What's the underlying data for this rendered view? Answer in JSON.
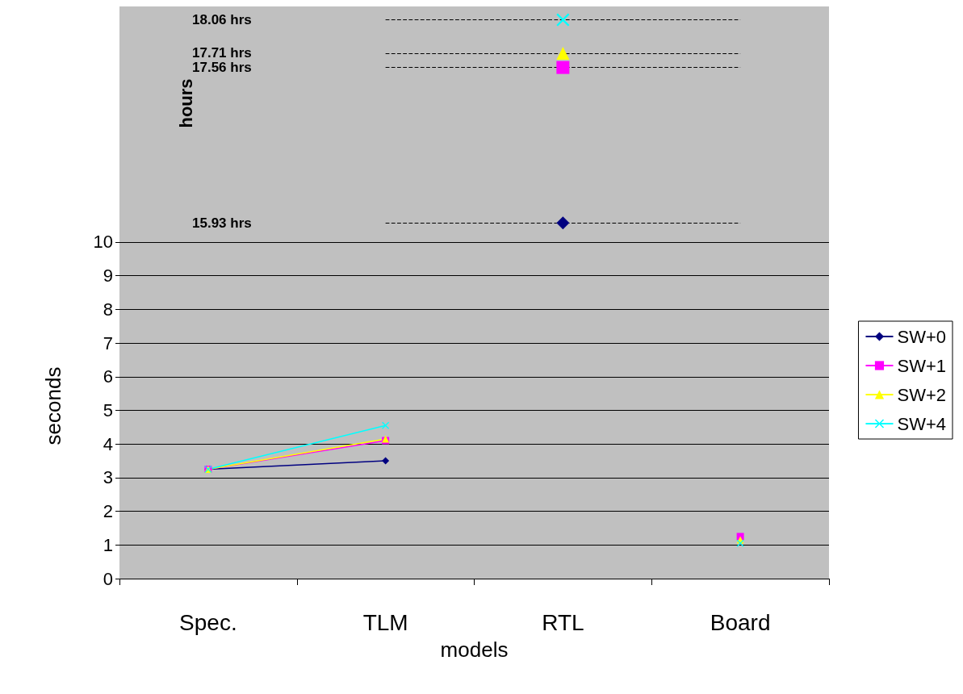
{
  "chart_data": {
    "type": "line",
    "xlabel": "models",
    "ylabel": "seconds",
    "y2label": "hours",
    "categories": [
      "Spec.",
      "TLM",
      "RTL",
      "Board"
    ],
    "ylim": [
      0,
      17
    ],
    "yticks": [
      0,
      1,
      2,
      3,
      4,
      5,
      6,
      7,
      8,
      9,
      10
    ],
    "y2lim": [
      12.2,
      18.2
    ],
    "y2ticks": [
      {
        "value": 15.93,
        "label": "15.93 hrs"
      },
      {
        "value": 17.56,
        "label": "17.56 hrs"
      },
      {
        "value": 17.71,
        "label": "17.71 hrs"
      },
      {
        "value": 18.06,
        "label": "18.06 hrs"
      }
    ],
    "grid": "y",
    "legend": "right",
    "series": [
      {
        "name": "SW+0",
        "color": "#000080",
        "marker": "diamond",
        "values": [
          3.25,
          3.5,
          null,
          null
        ]
      },
      {
        "name": "SW+1",
        "color": "#ff00ff",
        "marker": "square",
        "values": [
          3.25,
          4.1,
          null,
          1.25
        ]
      },
      {
        "name": "SW+2",
        "color": "#ffff00",
        "marker": "triangle",
        "values": [
          3.25,
          4.15,
          null,
          1.15
        ]
      },
      {
        "name": "SW+4",
        "color": "#00ffff",
        "marker": "cross",
        "values": [
          3.25,
          4.55,
          null,
          1.05
        ]
      },
      {
        "axis": "y2",
        "color": "#000080",
        "marker": "diamond",
        "values": [
          null,
          null,
          15.93,
          null
        ]
      },
      {
        "axis": "y2",
        "color": "#ff00ff",
        "marker": "square",
        "values": [
          null,
          null,
          17.56,
          null
        ]
      },
      {
        "axis": "y2",
        "color": "#ffff00",
        "marker": "triangle",
        "values": [
          null,
          null,
          17.71,
          null
        ]
      },
      {
        "axis": "y2",
        "color": "#00ffff",
        "marker": "cross",
        "values": [
          null,
          null,
          18.06,
          null
        ]
      }
    ],
    "ref_lines": [
      {
        "axis": "y2",
        "value": 15.93,
        "line_style": "dashed",
        "color": "#000000"
      },
      {
        "axis": "y2",
        "value": 17.56,
        "line_style": "dashed",
        "color": "#000000"
      },
      {
        "axis": "y2",
        "value": 17.71,
        "line_style": "dashed",
        "color": "#000000"
      },
      {
        "axis": "y2",
        "value": 18.06,
        "line_style": "dashed",
        "color": "#000000"
      }
    ]
  }
}
